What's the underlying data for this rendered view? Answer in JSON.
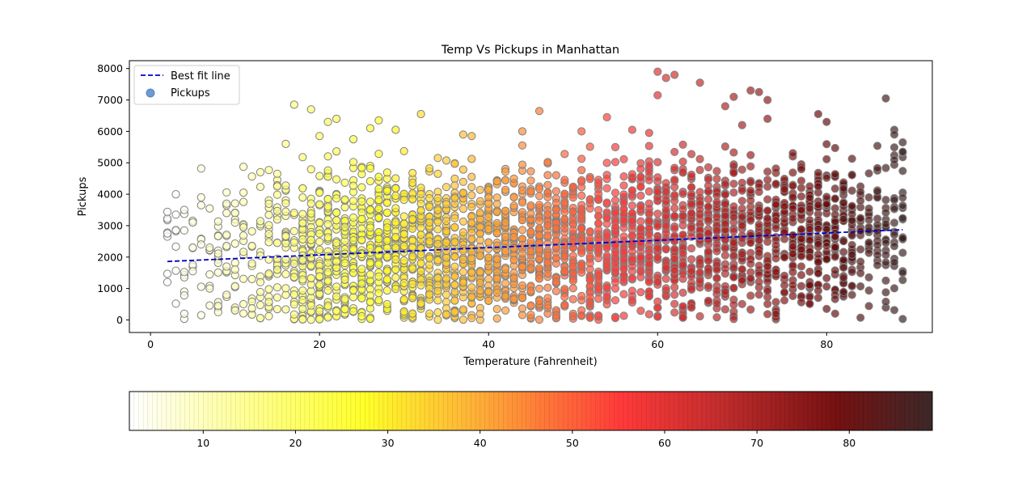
{
  "chart_data": {
    "type": "scatter",
    "title": "Temp Vs Pickups in Manhattan",
    "xlabel": "Temperature (Fahrenheit)",
    "ylabel": "Pickups",
    "xlim": [
      -2.5,
      92.5
    ],
    "ylim": [
      -400,
      8250
    ],
    "xticks": [
      0,
      20,
      40,
      60,
      80
    ],
    "yticks": [
      0,
      1000,
      2000,
      3000,
      4000,
      5000,
      6000,
      7000,
      8000
    ],
    "grid": false,
    "legend_position": "top-left",
    "legend": [
      {
        "label": "Best fit line",
        "kind": "line"
      },
      {
        "label": "Pickups",
        "kind": "marker"
      }
    ],
    "best_fit_line": {
      "name": "Best fit line",
      "color": "#0000cc",
      "style": "dashed",
      "x": [
        2,
        89
      ],
      "y": [
        1860,
        2870
      ]
    },
    "scatter_sample": [
      {
        "x": 2,
        "y": 2650
      },
      {
        "x": 2,
        "y": 2750
      },
      {
        "x": 3,
        "y": 4000
      },
      {
        "x": 3,
        "y": 3350
      },
      {
        "x": 4,
        "y": 3500
      },
      {
        "x": 4,
        "y": 2850
      },
      {
        "x": 4,
        "y": 900
      },
      {
        "x": 4,
        "y": 780
      },
      {
        "x": 5,
        "y": 1550
      },
      {
        "x": 5,
        "y": 3100
      },
      {
        "x": 6,
        "y": 3900
      },
      {
        "x": 6,
        "y": 3650
      },
      {
        "x": 7,
        "y": 2300
      },
      {
        "x": 7,
        "y": 1000
      },
      {
        "x": 8,
        "y": 250
      },
      {
        "x": 8,
        "y": 450
      },
      {
        "x": 9,
        "y": 3700
      },
      {
        "x": 9,
        "y": 800
      },
      {
        "x": 10,
        "y": 300
      },
      {
        "x": 10,
        "y": 3400
      },
      {
        "x": 11,
        "y": 4050
      },
      {
        "x": 11,
        "y": 500
      },
      {
        "x": 13,
        "y": 4700
      },
      {
        "x": 13,
        "y": 1200
      },
      {
        "x": 15,
        "y": 4250
      },
      {
        "x": 16,
        "y": 5600
      },
      {
        "x": 17,
        "y": 6850
      },
      {
        "x": 19,
        "y": 6700
      },
      {
        "x": 20,
        "y": 5850
      },
      {
        "x": 21,
        "y": 6300
      },
      {
        "x": 22,
        "y": 6400
      },
      {
        "x": 24,
        "y": 5750
      },
      {
        "x": 26,
        "y": 6100
      },
      {
        "x": 27,
        "y": 6350
      },
      {
        "x": 29,
        "y": 6050
      },
      {
        "x": 32,
        "y": 6550
      },
      {
        "x": 37,
        "y": 5900
      },
      {
        "x": 38,
        "y": 5850
      },
      {
        "x": 44,
        "y": 6000
      },
      {
        "x": 46,
        "y": 6650
      },
      {
        "x": 51,
        "y": 6000
      },
      {
        "x": 54,
        "y": 6450
      },
      {
        "x": 57,
        "y": 6050
      },
      {
        "x": 59,
        "y": 5950
      },
      {
        "x": 60,
        "y": 7900
      },
      {
        "x": 60,
        "y": 7150
      },
      {
        "x": 61,
        "y": 7700
      },
      {
        "x": 62,
        "y": 7800
      },
      {
        "x": 65,
        "y": 7550
      },
      {
        "x": 68,
        "y": 6800
      },
      {
        "x": 69,
        "y": 7100
      },
      {
        "x": 70,
        "y": 6200
      },
      {
        "x": 71,
        "y": 7300
      },
      {
        "x": 72,
        "y": 7250
      },
      {
        "x": 73,
        "y": 7000
      },
      {
        "x": 73,
        "y": 6400
      },
      {
        "x": 79,
        "y": 6550
      },
      {
        "x": 80,
        "y": 6300
      },
      {
        "x": 87,
        "y": 7050
      },
      {
        "x": 87,
        "y": 1250
      },
      {
        "x": 88,
        "y": 6050
      },
      {
        "x": 88,
        "y": 5900
      },
      {
        "x": 89,
        "y": 5650
      },
      {
        "x": 89,
        "y": 5350
      }
    ],
    "colorbar": {
      "orientation": "horizontal",
      "range": [
        2,
        89
      ],
      "ticks": [
        10,
        20,
        30,
        40,
        50,
        60,
        70,
        80
      ],
      "colors": [
        "#ffffff",
        "#ffff66",
        "#ffff2a",
        "#ffa830",
        "#ff3a3a",
        "#b81010",
        "#6b0000",
        "#3c1010"
      ]
    },
    "marker_style": {
      "edge": "#808080",
      "alpha": 0.7,
      "legend_color": "#6b9bd1"
    }
  }
}
